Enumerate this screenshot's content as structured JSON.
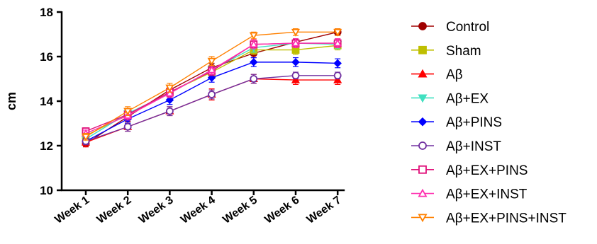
{
  "chart_data": {
    "type": "line",
    "title": "",
    "xlabel": "",
    "ylabel": "cm",
    "ylim": [
      10,
      18
    ],
    "yticks": [
      10,
      12,
      14,
      16,
      18
    ],
    "categories": [
      "Week 1",
      "Week 2",
      "Week 3",
      "Week 4",
      "Week 5",
      "Week 6",
      "Week 7"
    ],
    "grid": false,
    "legend_position": "right",
    "series": [
      {
        "name": "Control",
        "color": "#a00000",
        "marker": "circle-filled",
        "values": [
          12.1,
          13.3,
          14.5,
          15.5,
          16.15,
          16.65,
          17.1
        ],
        "error": [
          0.15,
          0.2,
          0.2,
          0.2,
          0.2,
          0.15,
          0.15
        ]
      },
      {
        "name": "Sham",
        "color": "#bfbf00",
        "marker": "square-filled",
        "values": [
          12.45,
          13.4,
          14.4,
          15.3,
          16.3,
          16.3,
          16.5
        ],
        "error": [
          0.15,
          0.2,
          0.2,
          0.2,
          0.2,
          0.2,
          0.2
        ]
      },
      {
        "name": "Aβ",
        "color": "#ff0000",
        "marker": "triangle-filled",
        "values": [
          12.15,
          12.85,
          13.55,
          14.3,
          15.0,
          14.95,
          14.95
        ],
        "error": [
          0.2,
          0.2,
          0.2,
          0.25,
          0.2,
          0.2,
          0.2
        ]
      },
      {
        "name": "Aβ+EX",
        "color": "#40e0c0",
        "marker": "triangle-down-filled",
        "values": [
          12.3,
          13.45,
          14.35,
          15.4,
          16.4,
          16.6,
          16.55
        ],
        "error": [
          0.15,
          0.2,
          0.2,
          0.2,
          0.2,
          0.2,
          0.2
        ]
      },
      {
        "name": "Aβ+PINS",
        "color": "#0000ff",
        "marker": "diamond-filled",
        "values": [
          12.2,
          13.2,
          14.05,
          15.05,
          15.75,
          15.75,
          15.7
        ],
        "error": [
          0.15,
          0.2,
          0.2,
          0.2,
          0.2,
          0.2,
          0.2
        ]
      },
      {
        "name": "Aβ+INST",
        "color": "#7030a0",
        "marker": "circle-open",
        "values": [
          12.2,
          12.85,
          13.55,
          14.3,
          15.0,
          15.15,
          15.15
        ],
        "error": [
          0.15,
          0.2,
          0.2,
          0.2,
          0.2,
          0.15,
          0.15
        ]
      },
      {
        "name": "Aβ+EX+PINS",
        "color": "#e0107a",
        "marker": "square-open",
        "values": [
          12.65,
          13.4,
          14.4,
          15.35,
          16.55,
          16.6,
          16.6
        ],
        "error": [
          0.15,
          0.2,
          0.2,
          0.2,
          0.2,
          0.2,
          0.2
        ]
      },
      {
        "name": "Aβ+EX+INST",
        "color": "#ff30b0",
        "marker": "triangle-open",
        "values": [
          12.55,
          13.35,
          14.35,
          15.4,
          16.55,
          16.6,
          16.6
        ],
        "error": [
          0.15,
          0.2,
          0.2,
          0.2,
          0.2,
          0.2,
          0.2
        ]
      },
      {
        "name": "Aβ+EX+PINS+INST",
        "color": "#ff8000",
        "marker": "triangle-down-open",
        "values": [
          12.4,
          13.55,
          14.6,
          15.8,
          16.95,
          17.1,
          17.1
        ],
        "error": [
          0.15,
          0.2,
          0.2,
          0.2,
          0.15,
          0.15,
          0.15
        ]
      }
    ]
  }
}
